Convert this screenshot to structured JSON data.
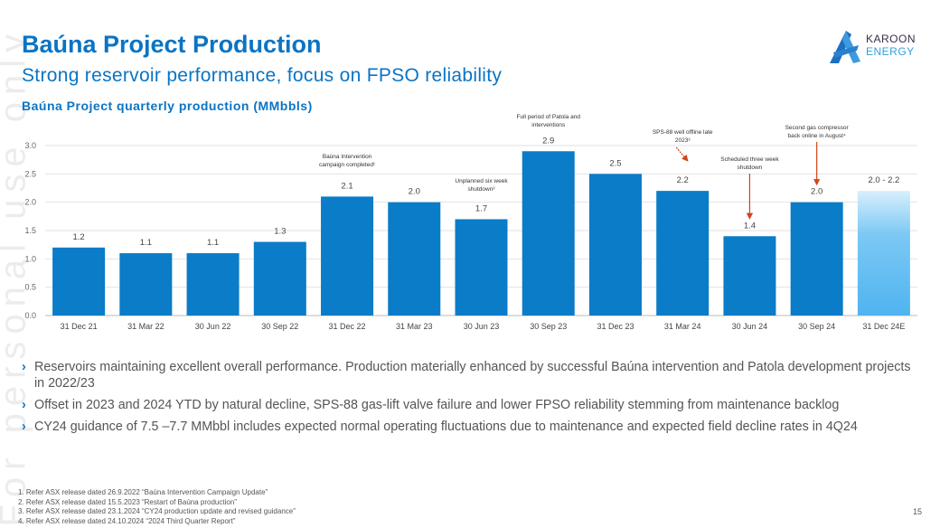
{
  "header": {
    "title": "Baúna Project Production",
    "subtitle": "Strong reservoir performance, focus on FPSO reliability"
  },
  "logo": {
    "line1": "KAROON",
    "line2": "ENERGY"
  },
  "watermark": "For personal use only",
  "chart_data": {
    "type": "bar",
    "title": "Baúna Project quarterly production (MMbbls)",
    "categories": [
      "31 Dec 21",
      "31 Mar 22",
      "30 Jun 22",
      "30 Sep 22",
      "31 Dec 22",
      "31 Mar 23",
      "30 Jun 23",
      "30 Sep 23",
      "31 Dec 23",
      "31 Mar 24",
      "30 Jun 24",
      "30 Sep 24",
      "31 Dec 24E"
    ],
    "values": [
      1.2,
      1.1,
      1.1,
      1.3,
      2.1,
      2.0,
      1.7,
      2.9,
      2.5,
      2.2,
      1.4,
      2.0,
      2.1
    ],
    "estimate_range": [
      2.0,
      2.2
    ],
    "data_labels": [
      "1.2",
      "1.1",
      "1.1",
      "1.3",
      "2.1",
      "2.0",
      "1.7",
      "2.9",
      "2.5",
      "2.2",
      "1.4",
      "2.0",
      "2.0 - 2.2"
    ],
    "ylim": [
      0,
      3.0
    ],
    "yticks": [
      "0.0",
      "0.5",
      "1.0",
      "1.5",
      "2.0",
      "2.5",
      "3.0"
    ],
    "grid": true,
    "colors": {
      "bar": "#0a7cc8",
      "estimate_top": "#d8effc",
      "estimate_bottom": "#4fb4ef",
      "arrow": "#d0441a"
    },
    "annotations": [
      {
        "index": 4,
        "lines": [
          "Baúna Intervention",
          "campaign completed¹"
        ],
        "arrow": false
      },
      {
        "index": 6,
        "lines": [
          "Unplanned six week",
          "shutdown²"
        ],
        "arrow": false
      },
      {
        "index": 7,
        "lines": [
          "Full period of Patola and",
          "interventions"
        ],
        "arrow": false
      },
      {
        "index": 9,
        "lines": [
          "SPS-88 well offline late",
          "2023³"
        ],
        "arrow": "diagonal"
      },
      {
        "index": 10,
        "lines": [
          "Scheduled three week",
          "shutdown"
        ],
        "arrow": "down"
      },
      {
        "index": 11,
        "lines": [
          "Second gas compressor",
          "back online in August⁴"
        ],
        "arrow": "down"
      }
    ]
  },
  "bullets": [
    "Reservoirs maintaining excellent overall performance. Production materially enhanced by successful Baúna intervention and Patola development projects in 2022/23",
    "Offset in 2023 and 2024 YTD by natural decline, SPS-88 gas-lift valve failure and lower FPSO reliability stemming from maintenance backlog",
    "CY24 guidance of 7.5 –7.7 MMbbl includes expected normal operating fluctuations due to maintenance and expected field decline rates in 4Q24"
  ],
  "bullet_marker": "›",
  "footnotes": [
    "1. Refer ASX release dated 26.9.2022 “Baúna Intervention Campaign Update”",
    "2. Refer ASX release dated 15.5.2023 “Restart of Baúna production”",
    "3. Refer ASX release dated 23.1.2024 “CY24 production update and revised guidance”",
    "4. Refer ASX release dated 24.10.2024 “2024 Third Quarter Report”"
  ],
  "page_number": "15"
}
